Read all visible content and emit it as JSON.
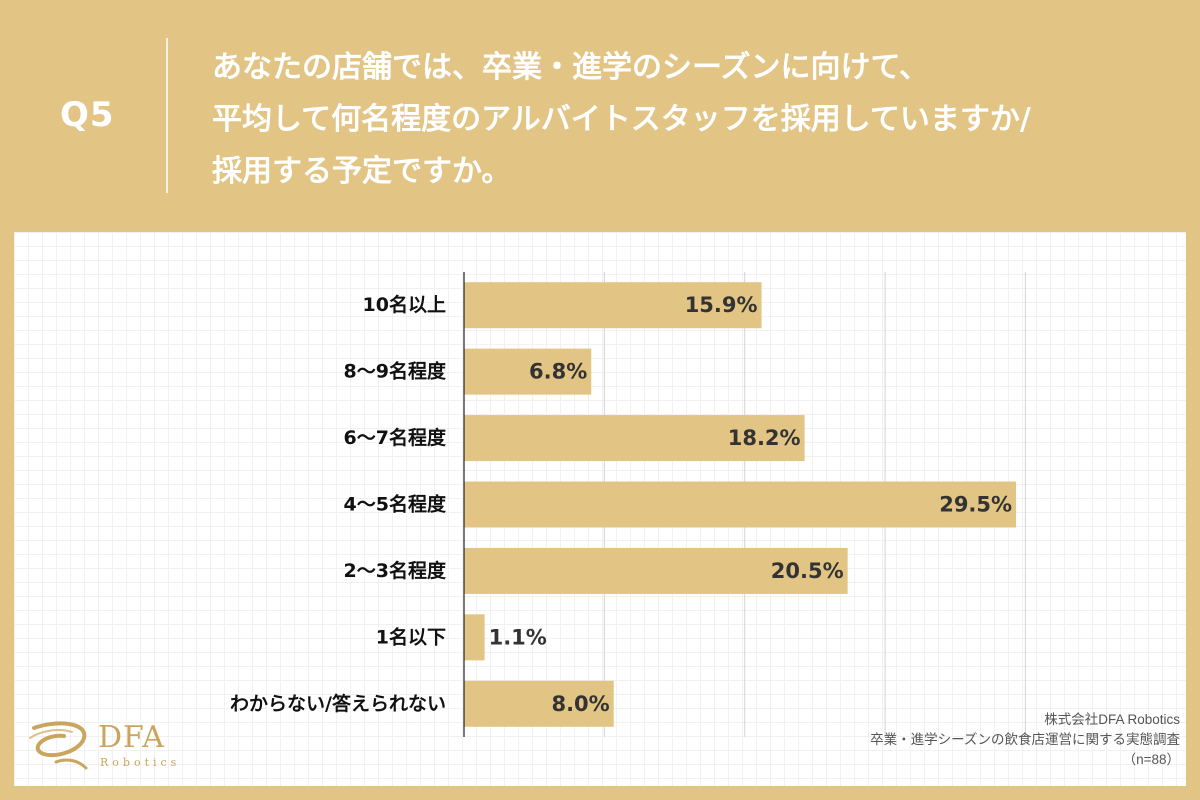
{
  "question": {
    "label": "Q5",
    "lines": [
      "あなたの店舗では、卒業・進学のシーズンに向けて、",
      "平均して何名程度のアルバイトスタッフを採用していますか/",
      "採用する予定ですか。"
    ]
  },
  "chart_data": {
    "type": "bar",
    "orientation": "horizontal",
    "categories": [
      "10名以上",
      "8〜9名程度",
      "6〜7名程度",
      "4〜5名程度",
      "2〜3名程度",
      "1名以下",
      "わからない/答えられない"
    ],
    "values": [
      15.9,
      6.8,
      18.2,
      29.5,
      20.5,
      1.1,
      8.0
    ],
    "value_labels": [
      "15.9%",
      "6.8%",
      "18.2%",
      "29.5%",
      "20.5%",
      "1.1%",
      "8.0%"
    ],
    "unit": "%",
    "xlim": [
      0,
      35
    ],
    "grid_step": 7.5,
    "grid": true,
    "legend": "none",
    "bar_color": "#e2c484",
    "label_color": "#333333"
  },
  "logo": {
    "name": "DFA",
    "sub": "Robotics"
  },
  "source": {
    "company": "株式会社DFA Robotics",
    "survey": "卒業・進学シーズンの飲食店運営に関する実態調査",
    "n": "（n=88）"
  },
  "colors": {
    "background": "#e2c484",
    "panel": "#ffffff",
    "accent": "#c9a55e"
  }
}
